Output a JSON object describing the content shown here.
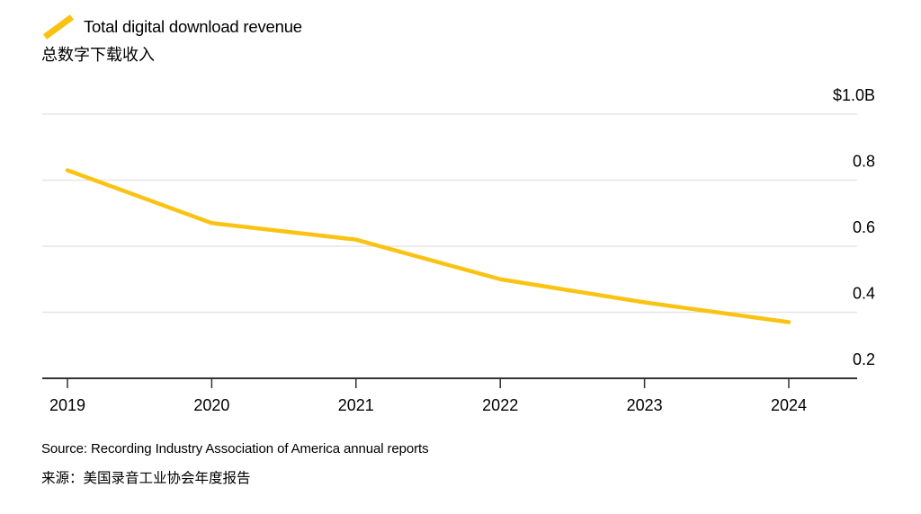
{
  "legend": {
    "label_en": "Total digital download revenue",
    "label_zh": "总数字下载收入"
  },
  "source": {
    "en": "Source: Recording Industry Association of America annual reports",
    "zh": "来源：美国录音工业协会年度报告"
  },
  "colors": {
    "line": "#FAC314",
    "grid": "#E6E6E6",
    "axis": "#333333",
    "text": "#000000"
  },
  "chart_data": {
    "type": "line",
    "title": "Total digital download revenue",
    "title_zh": "总数字下载收入",
    "categories": [
      "2019",
      "2020",
      "2021",
      "2022",
      "2023",
      "2024"
    ],
    "series": [
      {
        "name": "Total digital download revenue",
        "values": [
          0.83,
          0.67,
          0.62,
          0.5,
          0.43,
          0.37
        ]
      }
    ],
    "unit": "$B",
    "ylim": [
      0.2,
      1.0
    ],
    "yticks": [
      0.2,
      0.4,
      0.6,
      0.8,
      1.0
    ],
    "ytick_labels": [
      "0.2",
      "0.4",
      "0.6",
      "0.8",
      "$1.0B"
    ],
    "grid": "horizontal",
    "legend_position": "top-left",
    "source_en": "Source: Recording Industry Association of America annual reports",
    "source_zh": "来源：美国录音工业协会年度报告"
  }
}
